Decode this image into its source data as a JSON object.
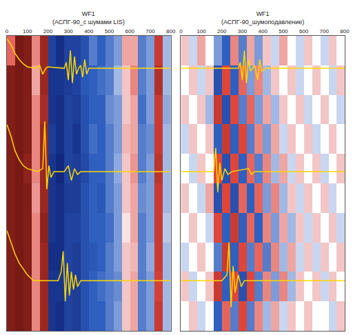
{
  "chart_data": [
    {
      "type": "heatmap",
      "title": "WF1",
      "subtitle": "(АСПГ-90_с шумами LIS)",
      "xlim": [
        0,
        800
      ],
      "xticks": [
        0,
        100,
        200,
        300,
        400,
        500,
        600,
        700,
        800
      ],
      "ylim": [
        100,
        0
      ],
      "tick_labels": "x",
      "zlim": [
        -1,
        1
      ],
      "x": [
        20,
        60,
        100,
        140,
        180,
        220,
        260,
        300,
        340,
        380,
        420,
        460,
        500,
        540,
        580,
        620,
        660,
        700,
        740,
        780
      ],
      "y": [
        5,
        15,
        25,
        35,
        45,
        55,
        65,
        75,
        85,
        95
      ],
      "z": [
        [
          0.4,
          0.95,
          0.9,
          0.3,
          0.8,
          -0.7,
          -0.85,
          -0.7,
          -0.7,
          -0.6,
          -0.4,
          -0.5,
          -0.4,
          -0.3,
          0.2,
          0.2,
          -0.4,
          -0.3,
          0.6,
          -0.2
        ],
        [
          0.9,
          0.95,
          0.9,
          0.2,
          0.8,
          -0.8,
          -0.8,
          -0.75,
          -0.7,
          -0.55,
          -0.5,
          -0.45,
          -0.4,
          -0.2,
          0.1,
          0.3,
          -0.4,
          -0.3,
          0.7,
          -0.2
        ],
        [
          0.9,
          0.95,
          0.9,
          0.3,
          0.75,
          -0.8,
          -0.85,
          -0.7,
          -0.75,
          -0.6,
          -0.5,
          -0.5,
          -0.35,
          -0.3,
          0.1,
          0.2,
          -0.45,
          -0.3,
          0.6,
          -0.25
        ],
        [
          0.9,
          0.95,
          0.9,
          0.3,
          0.8,
          -0.75,
          -0.85,
          -0.7,
          -0.8,
          -0.6,
          -0.45,
          -0.5,
          -0.4,
          -0.3,
          0.15,
          0.2,
          -0.4,
          -0.35,
          0.6,
          -0.2
        ],
        [
          0.9,
          0.95,
          0.85,
          0.3,
          0.8,
          -0.8,
          -0.9,
          -0.7,
          -0.75,
          -0.65,
          -0.5,
          -0.5,
          -0.4,
          -0.25,
          0.1,
          0.25,
          -0.4,
          -0.3,
          0.65,
          -0.2
        ],
        [
          0.9,
          0.95,
          0.9,
          0.25,
          0.8,
          -0.8,
          -0.85,
          -0.75,
          -0.75,
          -0.6,
          -0.5,
          -0.55,
          -0.4,
          -0.3,
          0.1,
          0.2,
          -0.35,
          -0.3,
          0.6,
          -0.2
        ],
        [
          0.9,
          0.95,
          0.9,
          0.3,
          0.85,
          -0.8,
          -0.85,
          -0.7,
          -0.7,
          -0.6,
          -0.5,
          -0.5,
          -0.45,
          -0.3,
          0.05,
          0.2,
          -0.4,
          -0.3,
          0.6,
          -0.15
        ],
        [
          0.9,
          0.95,
          0.9,
          0.3,
          0.8,
          -0.85,
          -0.85,
          -0.7,
          -0.75,
          -0.6,
          -0.55,
          -0.5,
          -0.4,
          -0.3,
          0.1,
          0.15,
          -0.4,
          -0.25,
          0.6,
          -0.2
        ],
        [
          0.9,
          0.95,
          0.9,
          0.3,
          0.8,
          -0.8,
          -0.8,
          -0.7,
          -0.75,
          -0.6,
          -0.5,
          -0.45,
          -0.4,
          -0.35,
          0.1,
          0.2,
          -0.4,
          -0.3,
          0.55,
          -0.2
        ],
        [
          0.9,
          0.95,
          0.9,
          0.3,
          0.8,
          -0.8,
          -0.85,
          -0.7,
          -0.75,
          -0.6,
          -0.5,
          -0.5,
          -0.4,
          -0.3,
          0.1,
          0.2,
          -0.4,
          -0.3,
          0.6,
          -0.2
        ]
      ],
      "series": [
        {
          "type": "line",
          "color": "#ffd700",
          "x": [
            0,
            20,
            40,
            60,
            80,
            100,
            140,
            160,
            175,
            190,
            200,
            260,
            280,
            290,
            300,
            310,
            320,
            330,
            340,
            350,
            360,
            370,
            380,
            390,
            400,
            800
          ],
          "values": [
            1,
            3,
            6,
            8,
            9.5,
            10.5,
            11,
            10,
            13,
            11,
            10.5,
            11,
            11,
            9,
            15,
            5,
            16,
            7,
            13,
            11,
            10,
            14,
            8,
            13,
            11,
            11
          ]
        },
        {
          "type": "line",
          "color": "#ffd700",
          "x": [
            0,
            20,
            40,
            60,
            80,
            100,
            150,
            175,
            185,
            195,
            205,
            215,
            230,
            280,
            300,
            315,
            330,
            345,
            360,
            800
          ],
          "values": [
            30,
            34,
            39,
            42,
            44,
            45,
            46,
            45,
            29,
            52,
            44,
            48,
            46,
            46,
            44,
            49,
            45,
            47,
            46,
            46
          ]
        },
        {
          "type": "line",
          "color": "#ffd700",
          "x": [
            0,
            20,
            40,
            60,
            80,
            100,
            130,
            170,
            250,
            265,
            275,
            285,
            295,
            305,
            315,
            325,
            335,
            345,
            360,
            800
          ],
          "values": [
            66,
            70,
            74,
            77,
            79,
            81,
            83,
            83,
            83,
            80,
            73,
            90,
            77,
            88,
            80,
            86,
            81,
            85,
            83,
            83
          ]
        }
      ]
    },
    {
      "type": "heatmap",
      "title": "WF1",
      "subtitle": "(АСПГ-90_шумоподавление)",
      "xlim": [
        0,
        800
      ],
      "xticks": [
        0,
        100,
        200,
        300,
        400,
        500,
        600,
        700,
        800
      ],
      "ylim": [
        100,
        0
      ],
      "tick_labels": "x",
      "zlim": [
        -1,
        1
      ],
      "x": [
        20,
        60,
        100,
        140,
        180,
        220,
        260,
        300,
        340,
        380,
        420,
        460,
        500,
        540,
        580,
        620,
        660,
        700,
        740,
        780
      ],
      "y": [
        5,
        15,
        25,
        35,
        45,
        55,
        65,
        75,
        85,
        95
      ],
      "z": [
        [
          0.1,
          -0.1,
          0.2,
          0.0,
          -0.3,
          -0.5,
          0.3,
          -0.4,
          0.2,
          -0.3,
          0.1,
          -0.1,
          0.2,
          0.0,
          -0.1,
          0.1,
          0.0,
          -0.1,
          0.1,
          0.0
        ],
        [
          0.0,
          0.1,
          -0.1,
          0.1,
          -0.6,
          0.5,
          -0.5,
          0.4,
          -0.3,
          0.3,
          -0.2,
          0.1,
          0.0,
          0.1,
          -0.1,
          0.0,
          0.1,
          0.0,
          -0.1,
          0.1
        ],
        [
          0.1,
          0.0,
          0.1,
          -0.2,
          0.6,
          -0.6,
          0.5,
          -0.4,
          0.4,
          -0.3,
          0.2,
          -0.2,
          0.1,
          0.0,
          0.1,
          -0.1,
          0.0,
          0.1,
          0.0,
          -0.1
        ],
        [
          -0.1,
          0.1,
          0.0,
          0.1,
          -0.5,
          0.6,
          -0.5,
          0.5,
          -0.4,
          0.3,
          -0.3,
          0.2,
          -0.1,
          0.1,
          0.0,
          0.1,
          -0.1,
          0.0,
          0.1,
          0.0
        ],
        [
          0.0,
          -0.1,
          0.1,
          0.0,
          0.5,
          -0.6,
          0.5,
          -0.5,
          0.4,
          -0.4,
          0.3,
          -0.2,
          0.2,
          -0.1,
          0.1,
          0.0,
          0.1,
          -0.1,
          0.0,
          0.1
        ],
        [
          0.1,
          0.0,
          -0.1,
          0.2,
          -0.6,
          0.5,
          -0.6,
          0.4,
          -0.5,
          0.4,
          -0.3,
          0.3,
          -0.2,
          0.1,
          -0.1,
          0.1,
          0.0,
          0.1,
          -0.1,
          0.0
        ],
        [
          0.0,
          0.1,
          0.0,
          -0.1,
          0.5,
          -0.5,
          0.6,
          -0.5,
          0.4,
          -0.5,
          0.3,
          -0.3,
          0.2,
          -0.2,
          0.1,
          -0.1,
          0.1,
          0.0,
          0.1,
          -0.1
        ],
        [
          -0.1,
          0.0,
          0.1,
          0.0,
          -0.4,
          0.6,
          -0.5,
          0.5,
          -0.4,
          0.4,
          -0.4,
          0.3,
          -0.2,
          0.2,
          -0.1,
          0.1,
          -0.1,
          0.1,
          0.0,
          0.1
        ],
        [
          0.1,
          -0.1,
          0.0,
          0.1,
          0.6,
          -0.5,
          0.5,
          -0.6,
          0.5,
          -0.4,
          0.3,
          -0.3,
          0.3,
          -0.2,
          0.1,
          0.0,
          0.1,
          -0.1,
          0.1,
          0.0
        ],
        [
          0.0,
          0.1,
          -0.1,
          0.0,
          -0.5,
          0.4,
          -0.4,
          0.5,
          -0.4,
          0.3,
          -0.2,
          0.2,
          -0.1,
          0.1,
          0.0,
          0.1,
          0.0,
          0.0,
          -0.1,
          0.1
        ]
      ],
      "series": [
        {
          "type": "line",
          "color": "#ffd700",
          "x": [
            0,
            280,
            290,
            300,
            310,
            320,
            330,
            340,
            360,
            375,
            385,
            395,
            410,
            800
          ],
          "values": [
            11,
            11,
            9,
            15,
            5,
            16,
            8,
            12,
            10,
            15,
            8,
            12,
            11,
            11
          ]
        },
        {
          "type": "line",
          "color": "#ffd700",
          "x": [
            0,
            160,
            170,
            180,
            190,
            200,
            215,
            230,
            250,
            330,
            345,
            360,
            800
          ],
          "values": [
            46,
            46,
            38,
            53,
            43,
            49,
            45,
            47,
            46,
            45,
            47,
            46,
            46
          ]
        },
        {
          "type": "line",
          "color": "#ffd700",
          "x": [
            0,
            200,
            225,
            235,
            245,
            255,
            265,
            280,
            295,
            310,
            800
          ],
          "values": [
            83,
            83,
            81,
            70,
            92,
            78,
            87,
            81,
            85,
            83,
            83
          ]
        }
      ]
    }
  ]
}
